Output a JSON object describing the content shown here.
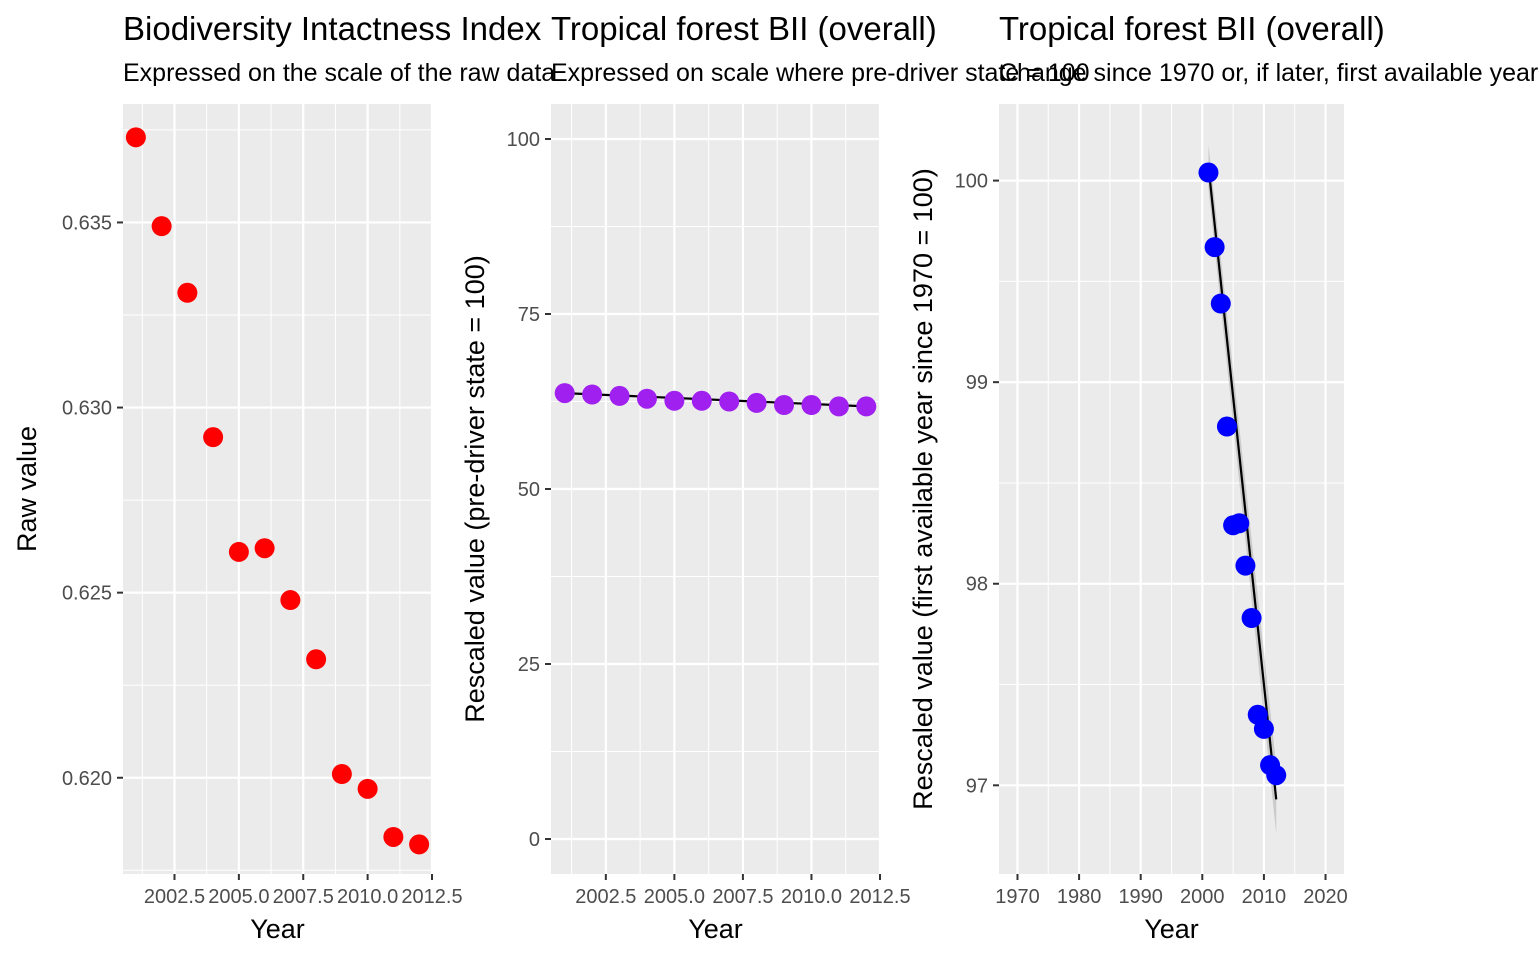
{
  "panels": [
    {
      "title": "Biodiversity Intactness Index",
      "subtitle": "Expressed on the scale of the raw data",
      "xlabel": "Year",
      "ylabel": "Raw value"
    },
    {
      "title": "Tropical forest BII (overall)",
      "subtitle": "Expressed on scale where pre-driver state = 100",
      "xlabel": "Year",
      "ylabel": "Rescaled value (pre-driver state = 100)"
    },
    {
      "title": "Tropical forest BII (overall)",
      "subtitle": "Change since 1970 or, if later, first available year",
      "xlabel": "Year",
      "ylabel": "Rescaled value (first available year since 1970 = 100)"
    }
  ],
  "chart_data": [
    {
      "type": "scatter",
      "title": "Biodiversity Intactness Index",
      "xlabel": "Year",
      "ylabel": "Raw value",
      "x": [
        2001,
        2002,
        2003,
        2004,
        2005,
        2006,
        2007,
        2008,
        2009,
        2010,
        2011,
        2012
      ],
      "y": [
        0.6373,
        0.6349,
        0.6331,
        0.6292,
        0.6261,
        0.6262,
        0.6248,
        0.6232,
        0.6201,
        0.6197,
        0.6184,
        0.6182
      ],
      "xlim": [
        2000.5,
        2012.5
      ],
      "ylim": [
        0.6174,
        0.6382
      ],
      "xticks": [
        2002.5,
        2005.0,
        2007.5,
        2010.0,
        2012.5
      ],
      "xtick_labels": [
        "2002.5",
        "2005.0",
        "2007.5",
        "2010.0",
        "2012.5"
      ],
      "yticks": [
        0.62,
        0.625,
        0.63,
        0.635
      ],
      "ytick_labels": [
        "0.620",
        "0.625",
        "0.630",
        "0.635"
      ],
      "point_color": "#ff0000",
      "grid": true
    },
    {
      "type": "scatter",
      "title": "Tropical forest BII (overall)",
      "xlabel": "Year",
      "ylabel": "Rescaled value (pre-driver state = 100)",
      "x": [
        2001,
        2002,
        2003,
        2004,
        2005,
        2006,
        2007,
        2008,
        2009,
        2010,
        2011,
        2012
      ],
      "y": [
        63.7,
        63.5,
        63.3,
        62.9,
        62.6,
        62.6,
        62.5,
        62.3,
        62.0,
        62.0,
        61.8,
        61.8
      ],
      "trend": {
        "x": [
          2001,
          2012
        ],
        "y": [
          63.7,
          61.8
        ]
      },
      "xlim": [
        2000.5,
        2012.5
      ],
      "ylim": [
        -5,
        105
      ],
      "xticks": [
        2002.5,
        2005.0,
        2007.5,
        2010.0,
        2012.5
      ],
      "xtick_labels": [
        "2002.5",
        "2005.0",
        "2007.5",
        "2010.0",
        "2012.5"
      ],
      "yticks": [
        0,
        25,
        50,
        75,
        100
      ],
      "ytick_labels": [
        "0",
        "25",
        "50",
        "75",
        "100"
      ],
      "point_color": "#a020f0",
      "grid": true
    },
    {
      "type": "scatter",
      "title": "Tropical forest BII (overall)",
      "xlabel": "Year",
      "ylabel": "Rescaled value (first available year since 1970 = 100)",
      "x": [
        2001,
        2002,
        2003,
        2004,
        2005,
        2006,
        2007,
        2008,
        2009,
        2010,
        2011,
        2012
      ],
      "y": [
        100.04,
        99.67,
        99.39,
        98.78,
        98.29,
        98.3,
        98.09,
        97.83,
        97.35,
        97.28,
        97.1,
        97.05
      ],
      "trend": {
        "x": [
          2001,
          2012
        ],
        "y": [
          100.07,
          96.93
        ]
      },
      "band": {
        "x": [
          2001,
          2012
        ],
        "upper": [
          100.18,
          97.1
        ],
        "lower": [
          99.96,
          96.76
        ]
      },
      "xlim": [
        1967,
        2023
      ],
      "ylim": [
        96.56,
        100.38
      ],
      "xticks": [
        1970,
        1980,
        1990,
        2000,
        2010,
        2020
      ],
      "xtick_labels": [
        "1970",
        "1980",
        "1990",
        "2000",
        "2010",
        "2020"
      ],
      "yticks": [
        97,
        98,
        99,
        100
      ],
      "ytick_labels": [
        "97",
        "98",
        "99",
        "100"
      ],
      "point_color": "#0000ff",
      "grid": true
    }
  ]
}
